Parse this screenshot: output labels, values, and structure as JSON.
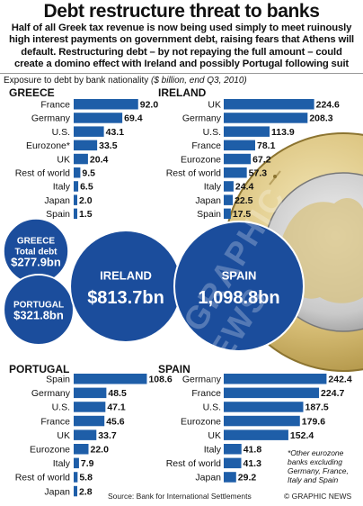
{
  "title": "Debt restructure threat to banks",
  "subtitle": "Half of all Greek tax revenue is now being used simply to meet ruinously high interest payments on government debt, raising fears that Athens will default. Restructuring debt – by not repaying the full amount – could create a domino effect with Ireland and possibly Portugal following suit",
  "intro": {
    "text": "Exposure to debt by bank nationality",
    "unit": "($ billion, end Q3, 2010)"
  },
  "colors": {
    "bar": "#1e5ea8",
    "bubble": "#1b4d9c",
    "bubble_light": "#2368c4"
  },
  "chart_data": [
    {
      "type": "bar",
      "title": "GREECE",
      "categories": [
        "France",
        "Germany",
        "U.S.",
        "Eurozone*",
        "UK",
        "Rest of world",
        "Italy",
        "Japan",
        "Spain"
      ],
      "values": [
        92.0,
        69.4,
        43.1,
        33.5,
        20.4,
        9.5,
        6.5,
        2.0,
        1.5
      ],
      "labels": [
        "92.0",
        "69.4",
        "43.1",
        "33.5",
        "20.4",
        "9.5",
        "6.5",
        "2.0",
        "1.5"
      ],
      "xlim": [
        0,
        100
      ]
    },
    {
      "type": "bar",
      "title": "IRELAND",
      "categories": [
        "UK",
        "Germany",
        "U.S.",
        "France",
        "Eurozone",
        "Rest of world",
        "Italy",
        "Japan",
        "Spain"
      ],
      "values": [
        224.6,
        208.3,
        113.9,
        78.1,
        67.2,
        57.3,
        24.4,
        22.5,
        17.5
      ],
      "labels": [
        "224.6",
        "208.3",
        "113.9",
        "78.1",
        "67.2",
        "57.3",
        "24.4",
        "22.5",
        "17.5"
      ],
      "xlim": [
        0,
        250
      ]
    },
    {
      "type": "bar",
      "title": "PORTUGAL",
      "categories": [
        "Spain",
        "Germany",
        "U.S.",
        "France",
        "UK",
        "Eurozone",
        "Italy",
        "Rest of world",
        "Japan"
      ],
      "values": [
        108.6,
        48.5,
        47.1,
        45.6,
        33.7,
        22.0,
        7.9,
        5.8,
        2.8
      ],
      "labels": [
        "108.6",
        "48.5",
        "47.1",
        "45.6",
        "33.7",
        "22.0",
        "7.9",
        "5.8",
        "2.8"
      ],
      "xlim": [
        0,
        120
      ]
    },
    {
      "type": "bar",
      "title": "SPAIN",
      "categories": [
        "Germany",
        "France",
        "U.S.",
        "Eurozone",
        "UK",
        "Italy",
        "Rest of world",
        "Japan"
      ],
      "values": [
        242.4,
        224.7,
        187.5,
        179.6,
        152.4,
        41.8,
        41.3,
        29.2
      ],
      "labels": [
        "242.4",
        "224.7",
        "187.5",
        "179.6",
        "152.4",
        "41.8",
        "41.3",
        "29.2"
      ],
      "xlim": [
        0,
        250
      ]
    }
  ],
  "totals": [
    {
      "country": "GREECE",
      "label": "Total debt",
      "value": 277.9,
      "value_text": "$277.9bn"
    },
    {
      "country": "PORTUGAL",
      "label": "",
      "value": 321.8,
      "value_text": "$321.8bn"
    },
    {
      "country": "IRELAND",
      "label": "",
      "value": 813.7,
      "value_text": "$813.7bn"
    },
    {
      "country": "SPAIN",
      "label": "",
      "value": 1098.8,
      "value_text": "1,098.8bn"
    }
  ],
  "footnote": "*Other eurozone banks excluding Germany, France, Italy and Spain",
  "source": "Source: Bank for International Settlements",
  "credit": "© GRAPHIC NEWS",
  "watermark": "© GRAPHIC NEWS"
}
